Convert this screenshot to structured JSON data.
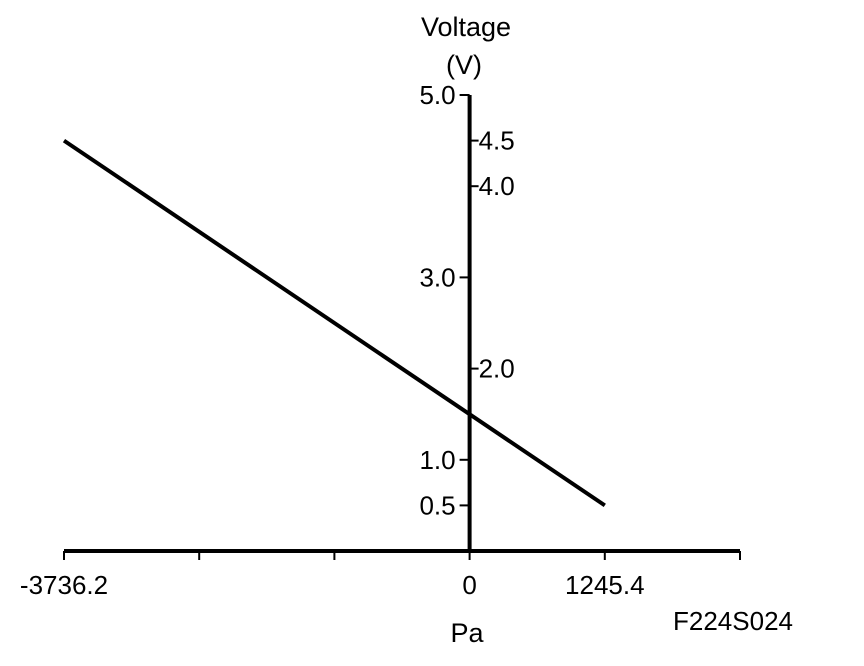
{
  "chart_data": {
    "type": "line",
    "ylabel_line1": "Voltage",
    "ylabel_line2": "(V)",
    "xlabel": "Pa",
    "figure_id": "F224S024",
    "x_ticks": [
      "-3736.2",
      "0",
      "1245.4"
    ],
    "y_ticks_left": [
      "5.0",
      "3.0",
      "1.0",
      "0.5"
    ],
    "y_ticks_right": [
      "4.5",
      "4.0",
      "2.0"
    ],
    "series": [
      {
        "x": [
          -3736.2,
          1245.4
        ],
        "y": [
          4.5,
          0.5
        ]
      }
    ],
    "xlim": [
      -3736.2,
      2490.8
    ],
    "ylim": [
      0,
      5.0
    ],
    "grid": false,
    "line_color": "#000000"
  }
}
